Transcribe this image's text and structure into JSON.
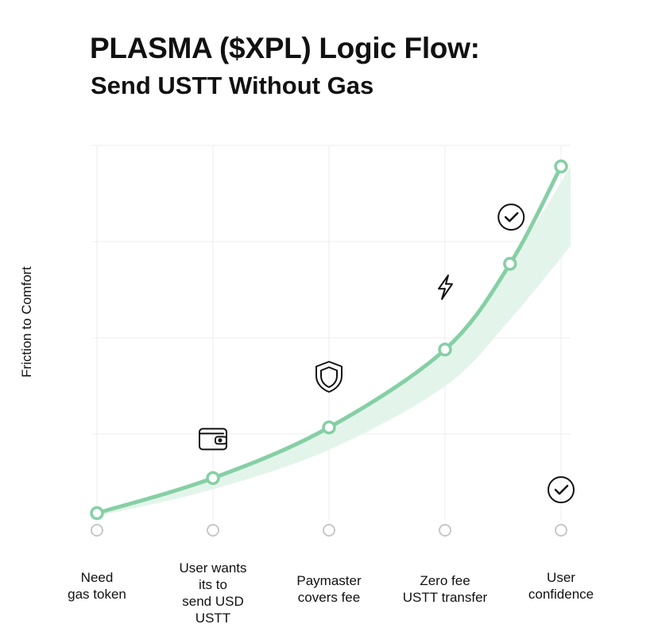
{
  "header": {
    "title": "PLASMA ($XPL) Logic Flow:",
    "subtitle": "Send USTT Without Gas"
  },
  "chart_data": {
    "type": "line",
    "title": "PLASMA ($XPL) Logic Flow:",
    "subtitle": "Send USTT Without Gas",
    "ylabel": "Friction to Comfort",
    "xlabel": "",
    "ylim": [
      0,
      1
    ],
    "grid": true,
    "legend": "none",
    "categories": [
      "Need gas token",
      "User wants its to send USD USTT",
      "Paymaster covers fee",
      "Zero fee USTT transfer",
      "User confidence"
    ],
    "x": [
      0,
      1,
      2,
      3,
      3.56,
      4
    ],
    "y": [
      0.05,
      0.14,
      0.27,
      0.47,
      0.69,
      0.94
    ],
    "x_labels": [
      [
        "Need",
        "gas token"
      ],
      [
        "User wants",
        "its to",
        "send USD",
        "USTT"
      ],
      [
        "Paymaster",
        "covers fee"
      ],
      [
        "Zero fee",
        "USTT transfer"
      ],
      [
        "User",
        "confidence"
      ]
    ],
    "annotations": [
      {
        "icon": "wallet-icon",
        "x": 1.0,
        "y": 0.24
      },
      {
        "icon": "shield-icon",
        "x": 2.0,
        "y": 0.4
      },
      {
        "icon": "lightning-icon",
        "x": 3.0,
        "y": 0.63
      },
      {
        "icon": "check-circle-icon",
        "x": 3.57,
        "y": 0.81
      },
      {
        "icon": "check-circle-icon",
        "x": 4.0,
        "y": 0.11
      }
    ],
    "colors": {
      "line": "#86cfa5",
      "band": "#e3f5ea",
      "grid": "#ececec",
      "marker_fill": "#ffffff",
      "axis_marker": "#c7c7c7"
    }
  }
}
